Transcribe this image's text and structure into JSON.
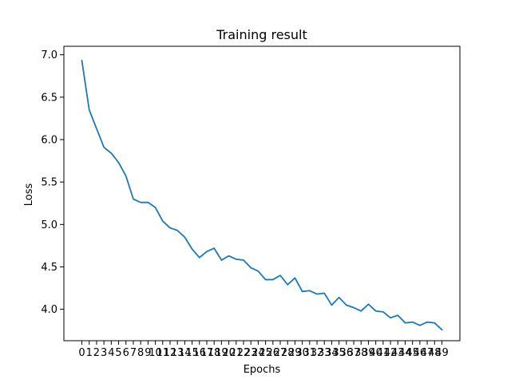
{
  "chart_data": {
    "type": "line",
    "title": "Training result",
    "xlabel": "Epochs",
    "ylabel": "Loss",
    "x": [
      0,
      1,
      2,
      3,
      4,
      5,
      6,
      7,
      8,
      9,
      10,
      11,
      12,
      13,
      14,
      15,
      16,
      17,
      18,
      19,
      20,
      21,
      22,
      23,
      24,
      25,
      26,
      27,
      28,
      29,
      30,
      31,
      32,
      33,
      34,
      35,
      36,
      37,
      38,
      39,
      40,
      41,
      42,
      43,
      44,
      45,
      46,
      47,
      48,
      49
    ],
    "xticks": [
      "0",
      "1",
      "2",
      "3",
      "4",
      "5",
      "6",
      "7",
      "8",
      "9",
      "10",
      "11",
      "12",
      "13",
      "14",
      "15",
      "16",
      "17",
      "18",
      "19",
      "20",
      "21",
      "22",
      "23",
      "24",
      "25",
      "26",
      "27",
      "28",
      "29",
      "30",
      "31",
      "32",
      "33",
      "34",
      "35",
      "36",
      "37",
      "38",
      "39",
      "40",
      "41",
      "42",
      "43",
      "44",
      "45",
      "46",
      "47",
      "48",
      "49"
    ],
    "yticks": [
      "7.0",
      "6.5",
      "6.0",
      "5.5",
      "5.0",
      "4.5",
      "4.0"
    ],
    "ylim": [
      3.63,
      7.1
    ],
    "xlim": [
      -2.45,
      51.45
    ],
    "grid": false,
    "series": [
      {
        "color": "#1f77b4",
        "values": [
          6.93,
          6.35,
          6.13,
          5.91,
          5.84,
          5.73,
          5.57,
          5.3,
          5.26,
          5.26,
          5.2,
          5.04,
          4.96,
          4.93,
          4.85,
          4.71,
          4.61,
          4.68,
          4.72,
          4.58,
          4.63,
          4.59,
          4.58,
          4.49,
          4.45,
          4.35,
          4.35,
          4.4,
          4.29,
          4.37,
          4.21,
          4.22,
          4.18,
          4.19,
          4.05,
          4.14,
          4.05,
          4.02,
          3.98,
          4.06,
          3.98,
          3.97,
          3.9,
          3.93,
          3.84,
          3.85,
          3.81,
          3.85,
          3.84,
          3.76
        ]
      }
    ]
  }
}
